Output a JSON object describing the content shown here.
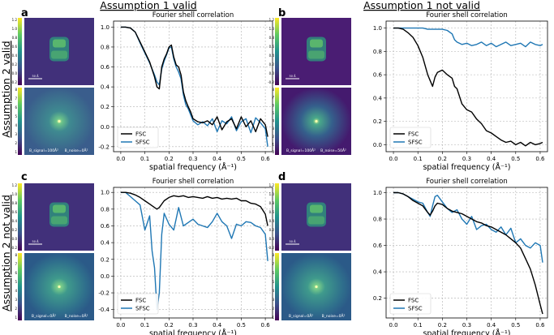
{
  "figure": {
    "column_headers": [
      "Assumption 1 valid",
      "Assumption 1 not valid"
    ],
    "row_headers": [
      "Assumption 2 valid",
      "Assumption 2 not valid"
    ],
    "panel_letters": [
      "a",
      "b",
      "c",
      "d"
    ],
    "colors": {
      "FSC": "#000000",
      "SFSC": "#1f77b4",
      "map_bg": "#41307a",
      "ps_bg": "#3a5d8c"
    },
    "map_colorbar_ticks": [
      "1.2",
      "1.0",
      "0.8",
      "0.6",
      "0.4",
      "0.2",
      "0.0",
      "-0.2"
    ],
    "ps_colorbar_ticks_a": [
      "8",
      "7",
      "6",
      "5",
      "4",
      "3",
      "2",
      "1"
    ],
    "ps_colorbar_ticks_b": [
      "8",
      "7",
      "6",
      "5",
      "4",
      "3",
      "2",
      "1",
      "0"
    ],
    "scalebar_label": "50 Å",
    "bfactor_labels": {
      "a": [
        "B_signal=100Å²",
        "B_noise=0Å²"
      ],
      "b": [
        "B_signal=100Å²",
        "B_noise=50Å²"
      ],
      "c": [
        "B_signal=0Å²",
        "B_noise=0Å²"
      ],
      "d": [
        "B_signal=0Å²",
        "B_noise=0Å²"
      ]
    }
  },
  "chart_data": [
    {
      "panel": "a",
      "type": "line",
      "title": "Fourier shell correlation",
      "xlabel": "spatial frequency (Å⁻¹)",
      "ylabel": "",
      "xlim": [
        -0.03,
        0.63
      ],
      "ylim": [
        -0.25,
        1.06
      ],
      "xticks": [
        "0.0",
        "0.1",
        "0.2",
        "0.3",
        "0.4",
        "0.5",
        "0.6"
      ],
      "yticks": [
        "-0.2",
        "0.0",
        "0.2",
        "0.4",
        "0.6",
        "0.8",
        "1.0"
      ],
      "legend": "lower-left",
      "grid": true,
      "x": [
        0.0,
        0.02,
        0.04,
        0.06,
        0.08,
        0.1,
        0.12,
        0.14,
        0.15,
        0.16,
        0.17,
        0.18,
        0.19,
        0.2,
        0.21,
        0.22,
        0.23,
        0.24,
        0.25,
        0.26,
        0.27,
        0.28,
        0.29,
        0.3,
        0.32,
        0.34,
        0.36,
        0.38,
        0.4,
        0.42,
        0.44,
        0.46,
        0.48,
        0.5,
        0.52,
        0.54,
        0.56,
        0.58,
        0.6,
        0.61
      ],
      "series": [
        {
          "name": "FSC",
          "values": [
            1.0,
            1.0,
            0.99,
            0.95,
            0.85,
            0.75,
            0.65,
            0.5,
            0.4,
            0.38,
            0.6,
            0.68,
            0.73,
            0.8,
            0.82,
            0.7,
            0.62,
            0.6,
            0.52,
            0.35,
            0.26,
            0.2,
            0.15,
            0.08,
            0.05,
            0.04,
            0.06,
            0.02,
            0.1,
            -0.03,
            0.05,
            0.08,
            -0.02,
            0.1,
            0.0,
            0.06,
            -0.05,
            0.08,
            0.02,
            -0.1
          ]
        },
        {
          "name": "SFSC",
          "values": [
            1.0,
            1.0,
            0.99,
            0.95,
            0.84,
            0.74,
            0.64,
            0.52,
            0.45,
            0.42,
            0.58,
            0.66,
            0.72,
            0.79,
            0.8,
            0.68,
            0.6,
            0.55,
            0.48,
            0.32,
            0.22,
            0.18,
            0.12,
            0.06,
            0.02,
            0.05,
            0.01,
            0.08,
            -0.05,
            0.06,
            0.03,
            0.1,
            -0.04,
            0.05,
            0.08,
            -0.06,
            0.09,
            0.04,
            -0.02,
            -0.2
          ]
        }
      ]
    },
    {
      "panel": "b",
      "type": "line",
      "title": "Fourier shell correlation",
      "xlabel": "spatial frequency (Å⁻¹)",
      "ylabel": "",
      "xlim": [
        -0.03,
        0.63
      ],
      "ylim": [
        -0.06,
        1.06
      ],
      "xticks": [
        "0.0",
        "0.1",
        "0.2",
        "0.3",
        "0.4",
        "0.5",
        "0.6"
      ],
      "yticks": [
        "0.0",
        "0.2",
        "0.4",
        "0.6",
        "0.8",
        "1.0"
      ],
      "legend": "lower-left",
      "grid": true,
      "x": [
        0.0,
        0.02,
        0.04,
        0.06,
        0.08,
        0.1,
        0.12,
        0.14,
        0.15,
        0.16,
        0.17,
        0.18,
        0.2,
        0.22,
        0.24,
        0.25,
        0.26,
        0.28,
        0.3,
        0.32,
        0.34,
        0.36,
        0.38,
        0.4,
        0.42,
        0.44,
        0.46,
        0.48,
        0.5,
        0.52,
        0.54,
        0.56,
        0.58,
        0.6,
        0.61
      ],
      "series": [
        {
          "name": "FSC",
          "values": [
            1.0,
            1.0,
            0.99,
            0.96,
            0.92,
            0.85,
            0.75,
            0.6,
            0.55,
            0.5,
            0.58,
            0.62,
            0.64,
            0.6,
            0.57,
            0.5,
            0.48,
            0.35,
            0.3,
            0.28,
            0.22,
            0.18,
            0.12,
            0.1,
            0.07,
            0.04,
            0.02,
            0.03,
            0.0,
            0.02,
            -0.01,
            0.02,
            0.0,
            0.01,
            0.02
          ]
        },
        {
          "name": "SFSC",
          "values": [
            1.0,
            1.0,
            1.0,
            1.0,
            1.0,
            1.0,
            1.0,
            0.99,
            0.99,
            0.99,
            0.99,
            0.99,
            0.99,
            0.98,
            0.95,
            0.9,
            0.88,
            0.86,
            0.87,
            0.85,
            0.86,
            0.88,
            0.85,
            0.87,
            0.84,
            0.86,
            0.88,
            0.85,
            0.86,
            0.87,
            0.84,
            0.88,
            0.86,
            0.85,
            0.86
          ]
        }
      ]
    },
    {
      "panel": "c",
      "type": "line",
      "title": "Fourier shell correlation",
      "xlabel": "spatial frequency (Å⁻¹)",
      "ylabel": "",
      "xlim": [
        -0.03,
        0.63
      ],
      "ylim": [
        -0.5,
        1.06
      ],
      "xticks": [
        "0.0",
        "0.1",
        "0.2",
        "0.3",
        "0.4",
        "0.5",
        "0.6"
      ],
      "yticks": [
        "-0.4",
        "-0.2",
        "0.0",
        "0.2",
        "0.4",
        "0.6",
        "0.8",
        "1.0"
      ],
      "legend": "lower-left",
      "grid": true,
      "x": [
        0.0,
        0.02,
        0.04,
        0.06,
        0.08,
        0.1,
        0.12,
        0.13,
        0.14,
        0.15,
        0.16,
        0.17,
        0.18,
        0.2,
        0.22,
        0.24,
        0.26,
        0.28,
        0.3,
        0.32,
        0.34,
        0.36,
        0.38,
        0.4,
        0.42,
        0.44,
        0.46,
        0.48,
        0.5,
        0.52,
        0.54,
        0.56,
        0.58,
        0.6,
        0.61
      ],
      "series": [
        {
          "name": "FSC",
          "values": [
            1.0,
            1.0,
            0.99,
            0.97,
            0.94,
            0.9,
            0.86,
            0.84,
            0.82,
            0.8,
            0.82,
            0.86,
            0.9,
            0.94,
            0.96,
            0.95,
            0.96,
            0.94,
            0.95,
            0.94,
            0.93,
            0.95,
            0.93,
            0.94,
            0.92,
            0.93,
            0.92,
            0.93,
            0.9,
            0.9,
            0.87,
            0.86,
            0.83,
            0.74,
            0.6
          ]
        },
        {
          "name": "SFSC",
          "values": [
            1.0,
            1.0,
            0.95,
            0.9,
            0.85,
            0.55,
            0.72,
            0.3,
            0.1,
            -0.4,
            -0.2,
            0.5,
            0.75,
            0.62,
            0.55,
            0.82,
            0.6,
            0.64,
            0.68,
            0.62,
            0.6,
            0.58,
            0.65,
            0.75,
            0.65,
            0.6,
            0.45,
            0.62,
            0.6,
            0.65,
            0.64,
            0.6,
            0.58,
            0.5,
            0.18
          ]
        }
      ]
    },
    {
      "panel": "d",
      "type": "line",
      "title": "Fourier shell correlation",
      "xlabel": "spatial frequency (Å⁻¹)",
      "ylabel": "",
      "xlim": [
        -0.03,
        0.63
      ],
      "ylim": [
        0.05,
        1.04
      ],
      "xticks": [
        "0.0",
        "0.1",
        "0.2",
        "0.3",
        "0.4",
        "0.5",
        "0.6"
      ],
      "yticks": [
        "0.2",
        "0.4",
        "0.6",
        "0.8",
        "1.0"
      ],
      "legend": "lower-left",
      "grid": true,
      "x": [
        0.0,
        0.02,
        0.04,
        0.06,
        0.08,
        0.1,
        0.12,
        0.14,
        0.15,
        0.16,
        0.17,
        0.18,
        0.2,
        0.22,
        0.24,
        0.26,
        0.28,
        0.3,
        0.32,
        0.34,
        0.36,
        0.38,
        0.4,
        0.42,
        0.44,
        0.46,
        0.48,
        0.5,
        0.52,
        0.54,
        0.56,
        0.58,
        0.6,
        0.61
      ],
      "series": [
        {
          "name": "FSC",
          "values": [
            1.0,
            1.0,
            0.99,
            0.97,
            0.94,
            0.92,
            0.9,
            0.85,
            0.83,
            0.86,
            0.9,
            0.92,
            0.91,
            0.88,
            0.86,
            0.85,
            0.84,
            0.82,
            0.8,
            0.78,
            0.77,
            0.75,
            0.74,
            0.72,
            0.7,
            0.68,
            0.65,
            0.62,
            0.58,
            0.5,
            0.42,
            0.3,
            0.15,
            0.08
          ]
        },
        {
          "name": "SFSC",
          "values": [
            1.0,
            1.0,
            0.99,
            0.97,
            0.95,
            0.93,
            0.92,
            0.85,
            0.82,
            0.9,
            0.97,
            0.98,
            0.93,
            0.88,
            0.85,
            0.87,
            0.8,
            0.76,
            0.82,
            0.72,
            0.75,
            0.76,
            0.72,
            0.7,
            0.74,
            0.68,
            0.73,
            0.62,
            0.65,
            0.6,
            0.58,
            0.62,
            0.6,
            0.47
          ]
        }
      ]
    }
  ]
}
